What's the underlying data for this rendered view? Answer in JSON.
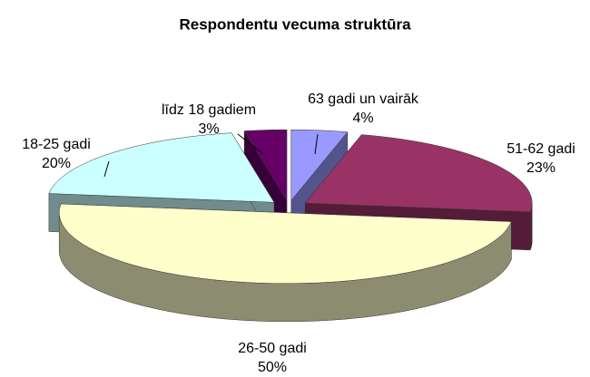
{
  "chart_data": {
    "type": "pie3d",
    "title": "Respondentu vecuma struktūra",
    "categories": [
      "63 gadi un vairāk",
      "51-62 gadi",
      "26-50 gadi",
      "18-25 gadi",
      "līdz 18 gadiem"
    ],
    "values": [
      4,
      23,
      50,
      20,
      3
    ],
    "value_labels": [
      "4%",
      "23%",
      "50%",
      "20%",
      "3%"
    ],
    "colors": [
      "#9999ff",
      "#993366",
      "#ffffcc",
      "#ccffff",
      "#660066"
    ]
  }
}
